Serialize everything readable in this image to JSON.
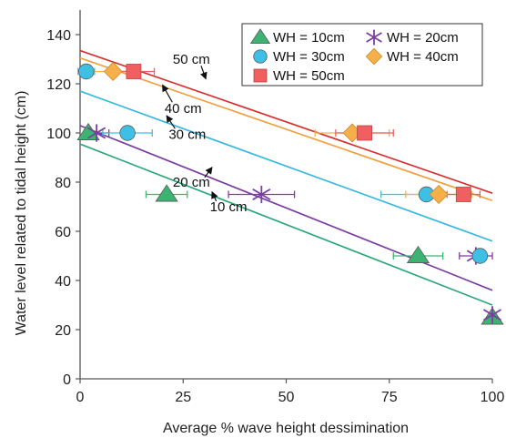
{
  "chart_data": {
    "type": "scatter",
    "xlabel": "Average % wave height dessimination",
    "ylabel": "Water level related to tidal height  (cm)",
    "xlim": [
      0,
      100
    ],
    "ylim": [
      0,
      150
    ],
    "xticks": [
      0,
      25,
      50,
      75,
      100
    ],
    "yticks": [
      0,
      20,
      40,
      60,
      80,
      100,
      120,
      140
    ],
    "grid": false,
    "legend_position": "top-right",
    "series": [
      {
        "name": "WH = 10cm",
        "marker": "triangle",
        "color": "#3cb371",
        "points": [
          {
            "x": 2,
            "y": 100,
            "xerr": 0
          },
          {
            "x": 21,
            "y": 75,
            "xerr": 5
          },
          {
            "x": 82,
            "y": 50,
            "xerr": 6
          },
          {
            "x": 100,
            "y": 25,
            "xerr": 0
          }
        ],
        "fit_line": {
          "x": [
            0,
            100
          ],
          "y": [
            95.5,
            30
          ]
        }
      },
      {
        "name": "WH = 20cm",
        "marker": "star",
        "color": "#7a3fa0",
        "points": [
          {
            "x": 4,
            "y": 100,
            "xerr": 3
          },
          {
            "x": 44,
            "y": 75,
            "xerr": 8
          },
          {
            "x": 96,
            "y": 50,
            "xerr": 4
          },
          {
            "x": 100,
            "y": 26,
            "xerr": 0
          }
        ],
        "fit_line": {
          "x": [
            0,
            100
          ],
          "y": [
            103,
            36
          ]
        }
      },
      {
        "name": "WH = 30cm",
        "marker": "circle",
        "color": "#3ec0e6",
        "points": [
          {
            "x": 1.5,
            "y": 125,
            "xerr": 2
          },
          {
            "x": 11.5,
            "y": 100,
            "xerr": 6
          },
          {
            "x": 84,
            "y": 75,
            "xerr": 11
          },
          {
            "x": 97,
            "y": 50,
            "xerr": 0
          }
        ],
        "fit_line": {
          "x": [
            0,
            100
          ],
          "y": [
            117,
            56
          ]
        }
      },
      {
        "name": "WH = 40cm",
        "marker": "diamond",
        "color": "#f5b04a",
        "points": [
          {
            "x": 8,
            "y": 125,
            "xerr": 5
          },
          {
            "x": 66,
            "y": 100,
            "xerr": 9
          },
          {
            "x": 87,
            "y": 75,
            "xerr": 8
          }
        ],
        "fit_line": {
          "x": [
            0,
            100
          ],
          "y": [
            130.5,
            72.5
          ]
        }
      },
      {
        "name": "WH = 50cm",
        "marker": "square",
        "color": "#f06060",
        "points": [
          {
            "x": 13,
            "y": 125,
            "xerr": 5
          },
          {
            "x": 69,
            "y": 100,
            "xerr": 7
          },
          {
            "x": 93,
            "y": 75,
            "xerr": 4
          }
        ],
        "fit_line": {
          "x": [
            0,
            100
          ],
          "y": [
            133.5,
            75.5
          ]
        }
      }
    ],
    "fit_line_colors": {
      "WH = 10cm": "#2ea87a",
      "WH = 20cm": "#7a3fa0",
      "WH = 30cm": "#3ab8e0",
      "WH = 40cm": "#f0a040",
      "WH = 50cm": "#d83030"
    },
    "annotations": [
      {
        "text": "50 cm",
        "x": 27,
        "y": 130,
        "arrow_to": {
          "x": 30.5,
          "y": 122
        }
      },
      {
        "text": "40 cm",
        "x": 25,
        "y": 110,
        "arrow_to": {
          "x": 20,
          "y": 119.5
        }
      },
      {
        "text": "30 cm",
        "x": 26,
        "y": 99.5,
        "arrow_to": {
          "x": 21,
          "y": 107
        }
      },
      {
        "text": "20 cm",
        "x": 27,
        "y": 80,
        "arrow_to": {
          "x": 32,
          "y": 86
        }
      },
      {
        "text": "10 cm",
        "x": 36,
        "y": 70,
        "arrow_to": {
          "x": 32,
          "y": 76
        }
      }
    ]
  }
}
